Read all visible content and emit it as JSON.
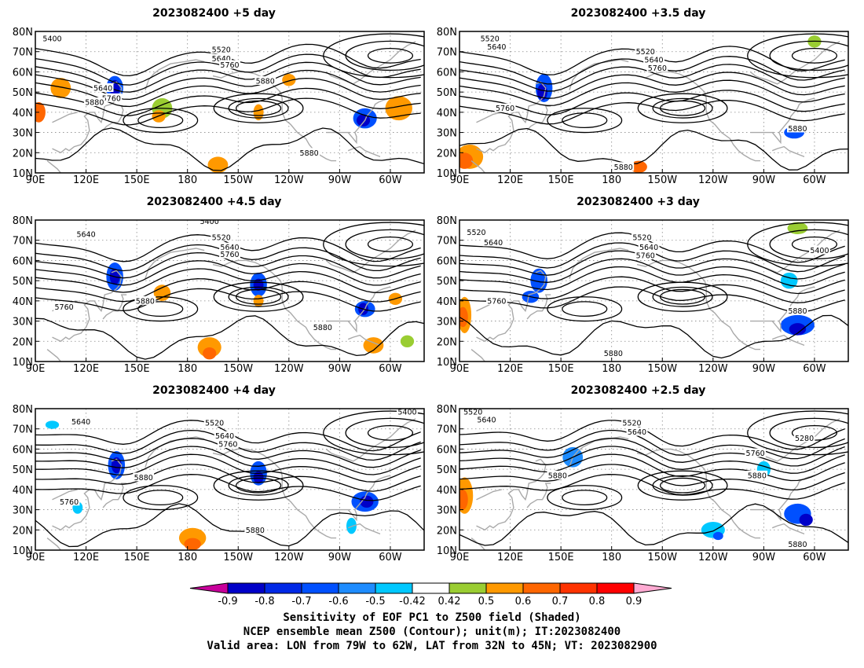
{
  "panels": [
    {
      "title": "2023082400 +5 day",
      "contour_labels": [
        "5400",
        "5520",
        "5640",
        "5760",
        "5880",
        "5640",
        "5760",
        "5880",
        "5880"
      ]
    },
    {
      "title": "2023082400 +3.5 day",
      "contour_labels": [
        "5520",
        "5640",
        "5520",
        "5640",
        "5760",
        "5760",
        "5880",
        "5880"
      ]
    },
    {
      "title": "2023082400 +4.5 day",
      "contour_labels": [
        "5400",
        "5640",
        "5520",
        "5640",
        "5760",
        "5760",
        "5880",
        "5880"
      ]
    },
    {
      "title": "2023082400 +3 day",
      "contour_labels": [
        "5520",
        "5640",
        "5520",
        "5640",
        "5760",
        "5400",
        "5760",
        "5880",
        "5880"
      ]
    },
    {
      "title": "2023082400 +4 day",
      "contour_labels": [
        "5640",
        "5520",
        "5400",
        "5640",
        "5760",
        "5880",
        "5760",
        "5880"
      ]
    },
    {
      "title": "2023082400 +2.5 day",
      "contour_labels": [
        "5520",
        "5640",
        "5520",
        "5640",
        "5280",
        "5760",
        "5880",
        "5880",
        "5880"
      ]
    }
  ],
  "map": {
    "lon_ticks": [
      "90E",
      "120E",
      "150E",
      "180",
      "150W",
      "120W",
      "90W",
      "60W"
    ],
    "lat_ticks": [
      "80N",
      "70N",
      "60N",
      "50N",
      "40N",
      "30N",
      "20N",
      "10N"
    ]
  },
  "colorbar": {
    "labels": [
      "-0.9",
      "-0.8",
      "-0.7",
      "-0.6",
      "-0.5",
      "-0.42",
      "0.42",
      "0.5",
      "0.6",
      "0.7",
      "0.8",
      "0.9"
    ],
    "colors": [
      "#0000c8",
      "#0028e6",
      "#0050ff",
      "#1e8cff",
      "#00c8ff",
      "#ffffff",
      "#9acd32",
      "#ff9900",
      "#ff6600",
      "#ff3300",
      "#ff0000"
    ],
    "low_color": "#c8009b",
    "high_color": "#ffaad2"
  },
  "footer": [
    "Sensitivity of EOF PC1 to Z500 field (Shaded)",
    "NCEP ensemble mean Z500 (Contour); unit(m); IT:2023082400",
    "Valid area: LON from 79W to 62W, LAT from 32N to 45N; VT: 2023082900"
  ]
}
